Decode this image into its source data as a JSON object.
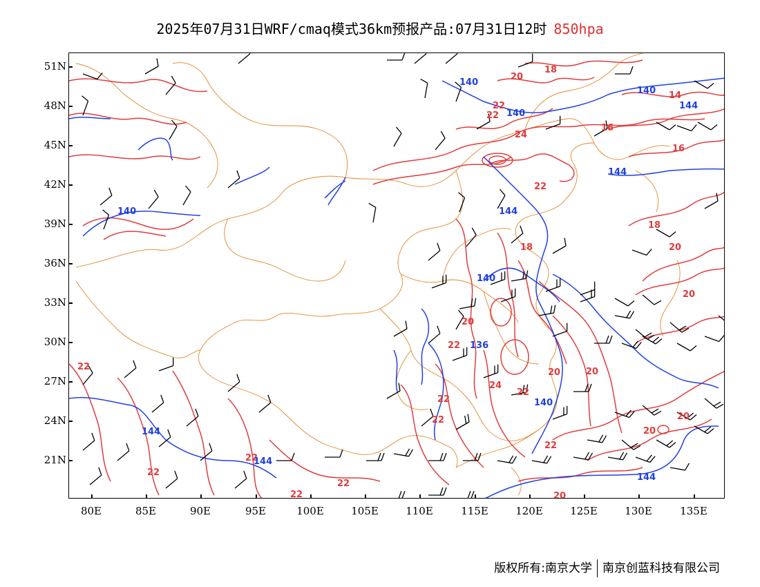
{
  "title": {
    "main": "2025年07月31日WRF/cmaq模式36km预报产品:07月31日12时",
    "level": "850hpa",
    "level_color": "#e03030"
  },
  "axes": {
    "lat_labels": [
      "51N",
      "48N",
      "45N",
      "42N",
      "39N",
      "36N",
      "33N",
      "30N",
      "27N",
      "24N",
      "21N"
    ],
    "lon_labels": [
      "80E",
      "85E",
      "90E",
      "95E",
      "100E",
      "105E",
      "110E",
      "115E",
      "120E",
      "125E",
      "130E",
      "135E"
    ]
  },
  "colors": {
    "temperature_contour": "#e03c3c",
    "height_contour": "#2040e0",
    "border": "#e0892a",
    "wind_barb": "#000000"
  },
  "temperature_labels": [
    "20",
    "18",
    "14",
    "16",
    "22",
    "22",
    "24",
    "16",
    "22",
    "18",
    "18",
    "20",
    "20",
    "20",
    "22",
    "22",
    "20",
    "20",
    "24",
    "22",
    "22",
    "20",
    "20",
    "22",
    "22",
    "22",
    "22",
    "22",
    "22",
    "20"
  ],
  "height_labels": [
    "140",
    "140",
    "140",
    "144",
    "140",
    "144",
    "140",
    "136",
    "140",
    "144",
    "144",
    "144",
    "144"
  ],
  "footer": {
    "copyright_label": "版权所有:",
    "owner1": "南京大学",
    "owner2": "南京创蓝科技有限公司"
  }
}
